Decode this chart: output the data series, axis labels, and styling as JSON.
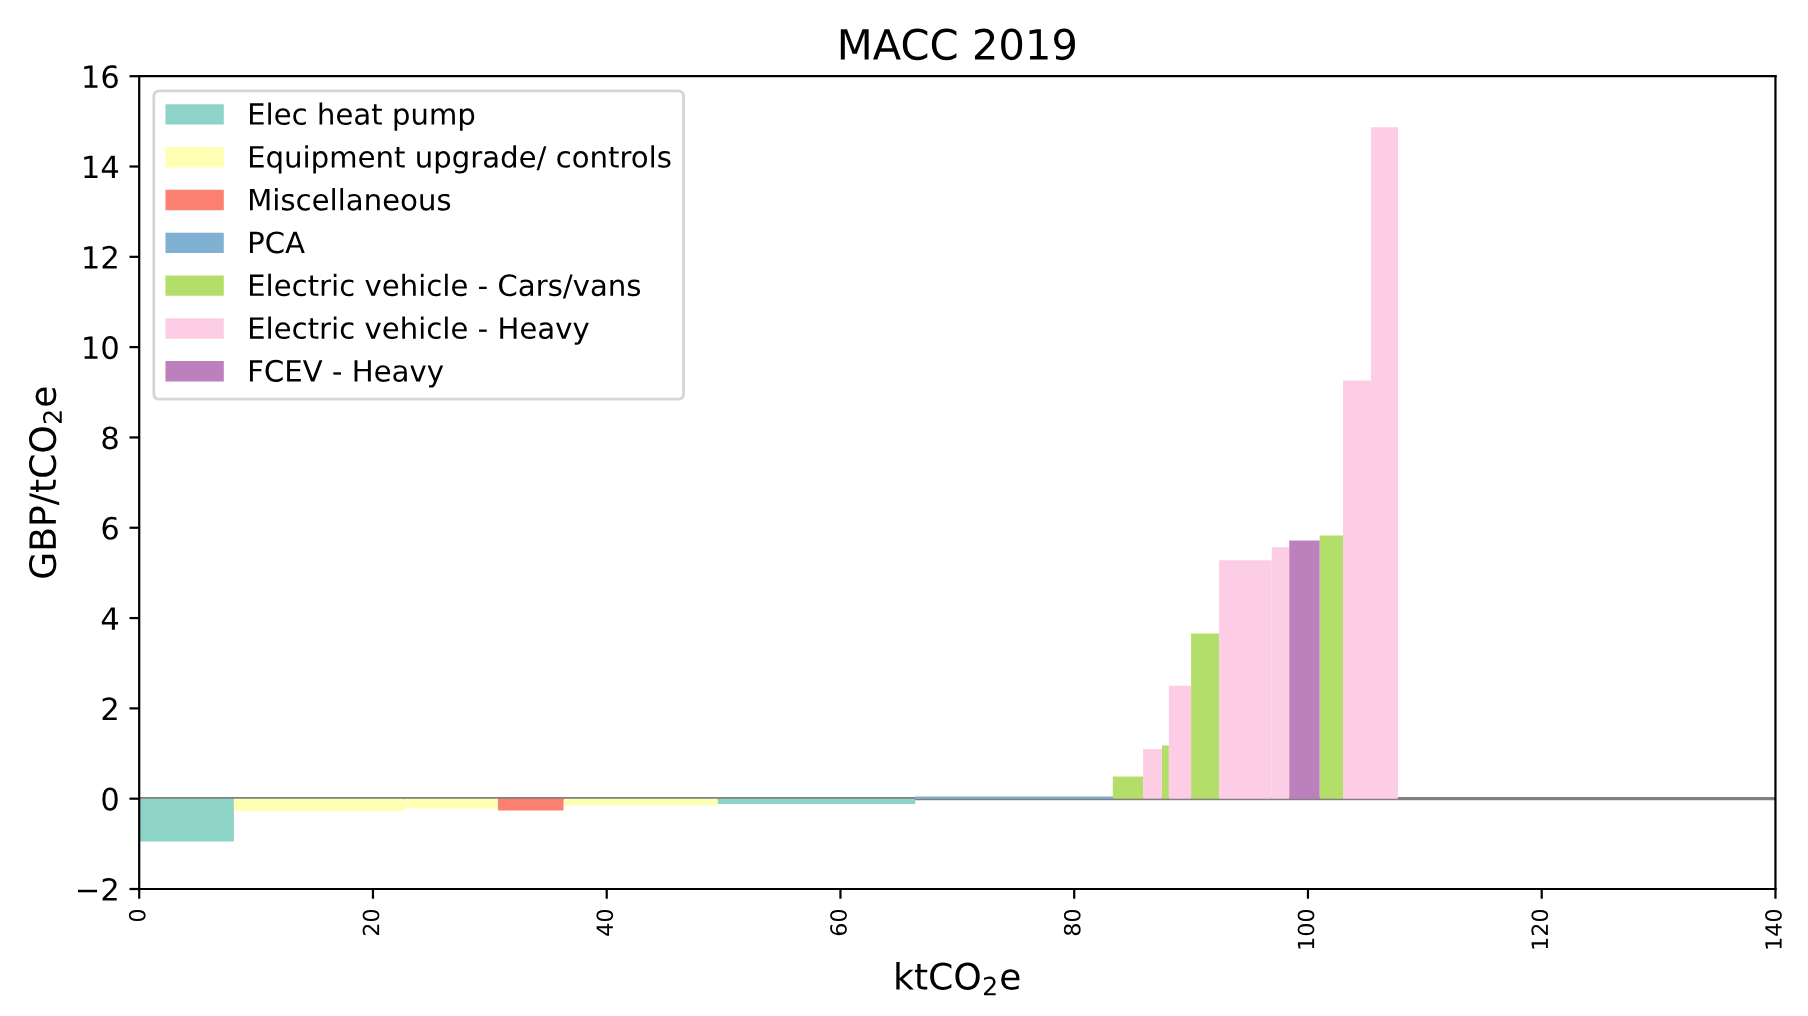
{
  "chart_data": {
    "type": "histogram",
    "title": "MACC 2019",
    "xlabel": "ktCO$_{2}$e",
    "ylabel": "GBP/tCO$_{2}$e",
    "bins": [
      0,
      8.1,
      22.7,
      30.7,
      36.3,
      49.5,
      66.4,
      83.3,
      85.9,
      87.5,
      88.1,
      90.0,
      92.4,
      96.9,
      98.4,
      101.0,
      103.0,
      105.4,
      107.7
    ],
    "series": [
      {
        "name": "Elec heat pump",
        "color": "#8dd3c7",
        "values": [
          -0.95,
          null,
          null,
          null,
          null,
          -0.12,
          null,
          null,
          null,
          null,
          null,
          null,
          null,
          null,
          null,
          null,
          null,
          null
        ]
      },
      {
        "name": "Equipment upgrade/ controls",
        "color": "#ffffb3",
        "values": [
          null,
          -0.28,
          -0.22,
          null,
          -0.15,
          null,
          null,
          null,
          null,
          null,
          null,
          null,
          null,
          null,
          null,
          null,
          null,
          null
        ]
      },
      {
        "name": "Miscellaneous",
        "color": "#fb8072",
        "values": [
          null,
          null,
          null,
          -0.26,
          null,
          null,
          null,
          null,
          null,
          null,
          null,
          null,
          null,
          null,
          null,
          null,
          null,
          null
        ]
      },
      {
        "name": "PCA",
        "color": "#80b1d3",
        "values": [
          null,
          null,
          null,
          null,
          null,
          null,
          0.05,
          null,
          null,
          null,
          null,
          null,
          null,
          null,
          null,
          null,
          null,
          null
        ]
      },
      {
        "name": "Electric vehicle - Cars/vans",
        "color": "#b3de69",
        "values": [
          null,
          null,
          null,
          null,
          null,
          null,
          null,
          0.49,
          null,
          1.18,
          null,
          3.66,
          null,
          null,
          null,
          5.83,
          null,
          null
        ]
      },
      {
        "name": "Electric vehicle - Heavy",
        "color": "#fccde5",
        "values": [
          null,
          null,
          null,
          null,
          null,
          null,
          null,
          null,
          1.1,
          null,
          2.5,
          null,
          5.28,
          5.57,
          null,
          null,
          9.26,
          14.87
        ]
      },
      {
        "name": "FCEV - Heavy",
        "color": "#bc80bd",
        "values": [
          null,
          null,
          null,
          null,
          null,
          null,
          null,
          null,
          null,
          null,
          null,
          null,
          null,
          null,
          5.72,
          null,
          null,
          null
        ]
      }
    ],
    "xlim": [
      0,
      140
    ],
    "xticks": [
      0,
      20,
      40,
      60,
      80,
      100,
      120,
      140
    ],
    "ylim": [
      -2,
      16
    ],
    "yticks": [
      -2,
      0,
      2,
      4,
      6,
      8,
      10,
      12,
      14,
      16
    ],
    "ref_lines": [
      {
        "axis": "y",
        "value": 0,
        "color": "#808080"
      }
    ],
    "grid": false,
    "legend": "top left"
  }
}
